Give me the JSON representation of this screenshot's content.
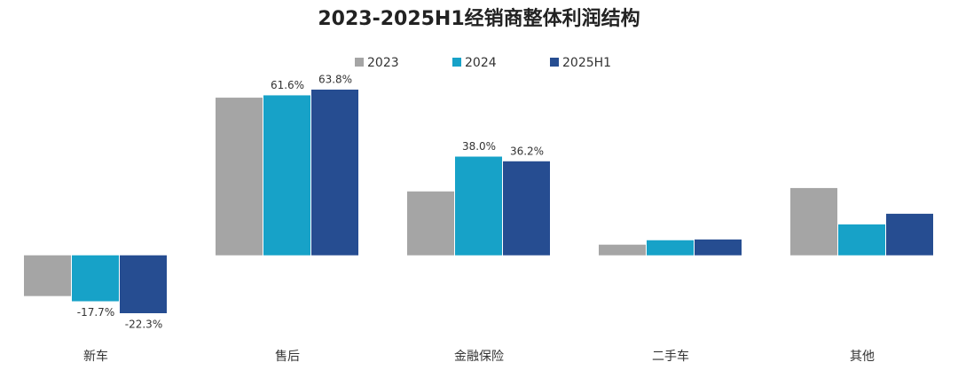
{
  "chart_data": {
    "type": "bar",
    "title": "2023-2025H1经销商整体利润结构",
    "categories": [
      "新车",
      "售后",
      "金融保险",
      "二手车",
      "其他"
    ],
    "series": [
      {
        "name": "2023",
        "color": "#a5a5a5",
        "values": [
          -15.7,
          60.7,
          24.6,
          4.1,
          25.9
        ],
        "value_labels": [
          null,
          null,
          null,
          null,
          null
        ]
      },
      {
        "name": "2024",
        "color": "#17a2c8",
        "values": [
          -17.7,
          61.6,
          38.0,
          5.8,
          11.9
        ],
        "value_labels": [
          "-17.7%",
          "61.6%",
          "38.0%",
          null,
          null
        ]
      },
      {
        "name": "2025H1",
        "color": "#264d91",
        "values": [
          -22.3,
          63.8,
          36.2,
          6.1,
          16.0
        ],
        "value_labels": [
          "-22.3%",
          "63.8%",
          "36.2%",
          null,
          null
        ]
      }
    ]
  }
}
